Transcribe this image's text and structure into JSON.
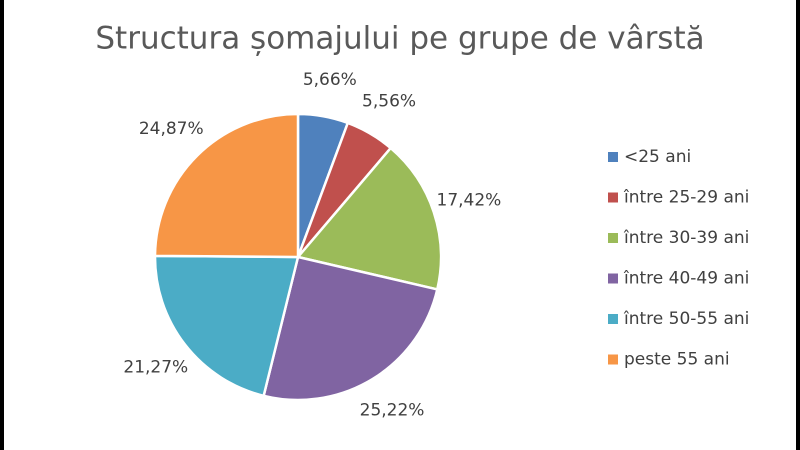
{
  "chart_data": {
    "type": "pie",
    "title": "Structura șomajului pe grupe de vârstă",
    "categories": [
      "<25 ani",
      "între 25-29 ani",
      "între 30-39 ani",
      "între 40-49 ani",
      "între 50-55 ani",
      "peste 55 ani"
    ],
    "values": [
      5.66,
      5.56,
      17.42,
      25.22,
      21.27,
      24.87
    ],
    "value_labels": [
      "5,66%",
      "5,56%",
      "17,42%",
      "25,22%",
      "21,27%",
      "24,87%"
    ],
    "colors": [
      "#4f81bd",
      "#c0504d",
      "#9bbb59",
      "#8064a2",
      "#4bacc6",
      "#f79646"
    ],
    "legend": "right"
  }
}
